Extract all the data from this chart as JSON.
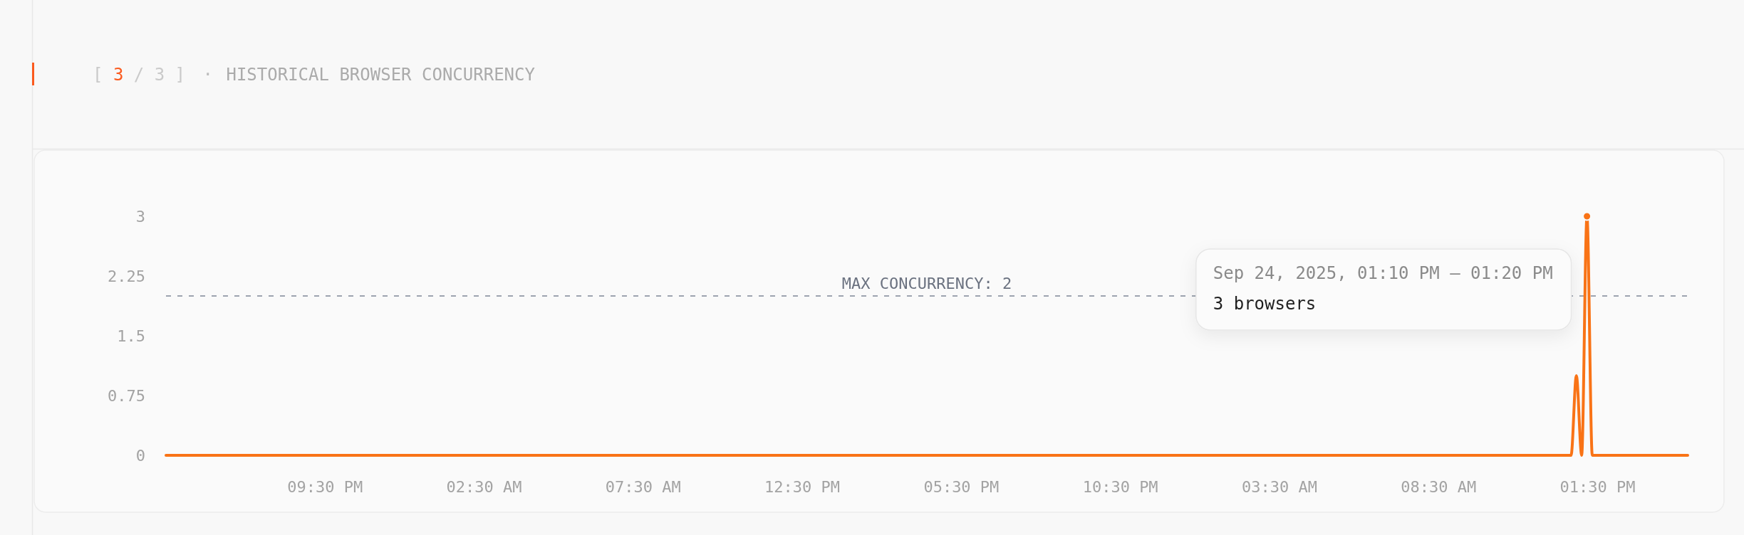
{
  "chart_data": {
    "type": "line",
    "title": "[ 3 / 3 ] · HISTORICAL BROWSER CONCURRENCY",
    "x": [
      "2025-09-22T16:30",
      "2025-09-22T21:30",
      "2025-09-23T02:30",
      "2025-09-23T07:30",
      "2025-09-23T12:30",
      "2025-09-23T17:30",
      "2025-09-23T22:30",
      "2025-09-24T03:30",
      "2025-09-24T08:30",
      "2025-09-24T12:30",
      "2025-09-24T12:40",
      "2025-09-24T12:50",
      "2025-09-24T13:00",
      "2025-09-24T13:10",
      "2025-09-24T13:20",
      "2025-09-24T13:30",
      "2025-09-24T14:30",
      "2025-09-24T15:30",
      "2025-09-24T16:20"
    ],
    "series": [
      {
        "color": "#f97316",
        "values": [
          0,
          0,
          0,
          0,
          0,
          0,
          0,
          0,
          0,
          0,
          0,
          1,
          0,
          3,
          0,
          0,
          0,
          0,
          0
        ]
      },
      {
        "type": "scatter",
        "color": "#f97316",
        "marker": "circle",
        "x": [
          "2025-09-24T13:10"
        ],
        "values": [
          3
        ]
      }
    ],
    "xlim": [
      "2025-09-22T16:30",
      "2025-09-24T16:20"
    ],
    "xticks": [
      {
        "value": "2025-09-22T21:30",
        "label": "09:30 PM"
      },
      {
        "value": "2025-09-23T02:30",
        "label": "02:30 AM"
      },
      {
        "value": "2025-09-23T07:30",
        "label": "07:30 AM"
      },
      {
        "value": "2025-09-23T12:30",
        "label": "12:30 PM"
      },
      {
        "value": "2025-09-23T17:30",
        "label": "05:30 PM"
      },
      {
        "value": "2025-09-23T22:30",
        "label": "10:30 PM"
      },
      {
        "value": "2025-09-24T03:30",
        "label": "03:30 AM"
      },
      {
        "value": "2025-09-24T08:30",
        "label": "08:30 AM"
      },
      {
        "value": "2025-09-24T13:30",
        "label": "01:30 PM"
      }
    ],
    "ylim": [
      0,
      3
    ],
    "yticks": [
      0,
      0.75,
      1.5,
      2.25,
      3
    ],
    "ref_lines": [
      {
        "axis": "y",
        "value": 2,
        "label": "MAX CONCURRENCY: 2",
        "color": "#9ca3af",
        "line_style": "dashed"
      }
    ],
    "annotations": [
      "Sep 24, 2025, 01:10 PM — 01:20 PM",
      "3 browsers"
    ]
  }
}
